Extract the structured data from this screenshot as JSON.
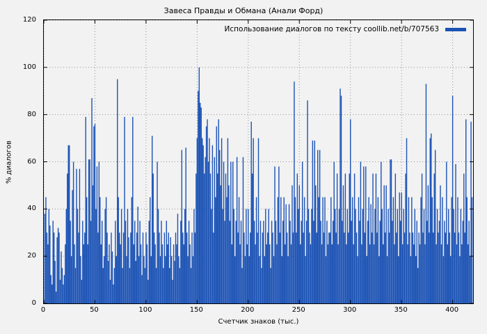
{
  "figure": {
    "title": "Завеса Правды и Обмана (Анали Форд)"
  },
  "legend": {
    "label": "Использование диалогов по тексту coollib.net/b/707563"
  },
  "axes": {
    "ylabel": "% диалогов",
    "xlabel": "Счетчик знаков (тыс.)"
  },
  "colors": {
    "bar": "#1b52b5",
    "grid": "#909090",
    "axis": "#000000",
    "background": "#f2f2f2"
  },
  "chart_data": {
    "type": "bar",
    "title": "Завеса Правды и Обмана (Анали Форд)",
    "series_label": "Использование диалогов по тексту coollib.net/b/707563",
    "xlabel": "Счетчик знаков (тыс.)",
    "ylabel": "% диалогов",
    "xlim": [
      0,
      420
    ],
    "ylim": [
      0,
      120
    ],
    "xticks": [
      0,
      50,
      100,
      150,
      200,
      250,
      300,
      350,
      400
    ],
    "yticks": [
      0,
      20,
      40,
      60,
      80,
      100,
      120
    ],
    "grid": true,
    "legend_position": "top-right",
    "x_start": 0,
    "x_step": 1,
    "values": [
      0,
      38,
      45,
      30,
      25,
      40,
      33,
      12,
      8,
      35,
      30,
      18,
      5,
      28,
      32,
      30,
      10,
      22,
      15,
      8,
      12,
      25,
      40,
      55,
      67,
      67,
      35,
      20,
      48,
      60,
      25,
      15,
      57,
      40,
      30,
      57,
      20,
      10,
      35,
      25,
      30,
      79,
      45,
      25,
      61,
      61,
      35,
      87,
      50,
      75,
      76,
      40,
      58,
      30,
      60,
      45,
      25,
      35,
      15,
      20,
      40,
      45,
      30,
      18,
      25,
      10,
      30,
      22,
      8,
      15,
      35,
      20,
      95,
      45,
      30,
      25,
      40,
      15,
      30,
      79,
      35,
      20,
      40,
      28,
      15,
      30,
      45,
      79,
      25,
      35,
      18,
      30,
      41,
      20,
      35,
      25,
      12,
      30,
      20,
      15,
      30,
      25,
      10,
      35,
      45,
      20,
      71,
      55,
      30,
      25,
      15,
      60,
      40,
      30,
      20,
      35,
      25,
      15,
      30,
      20,
      35,
      25,
      30,
      15,
      28,
      20,
      10,
      25,
      18,
      30,
      25,
      38,
      20,
      15,
      35,
      65,
      30,
      25,
      40,
      66,
      30,
      20,
      35,
      25,
      15,
      30,
      20,
      40,
      30,
      55,
      70,
      90,
      100,
      85,
      83,
      70,
      67,
      55,
      62,
      75,
      78,
      60,
      70,
      55,
      40,
      67,
      30,
      62,
      45,
      75,
      55,
      78,
      65,
      50,
      70,
      40,
      60,
      35,
      55,
      45,
      70,
      50,
      35,
      60,
      25,
      60,
      40,
      20,
      35,
      62,
      30,
      45,
      25,
      35,
      15,
      62,
      30,
      20,
      40,
      25,
      40,
      20,
      30,
      77,
      55,
      70,
      35,
      25,
      45,
      30,
      70,
      20,
      35,
      15,
      30,
      35,
      20,
      40,
      25,
      30,
      40,
      25,
      15,
      35,
      30,
      20,
      58,
      35,
      25,
      45,
      58,
      30,
      45,
      20,
      35,
      45,
      25,
      42,
      30,
      20,
      42,
      35,
      25,
      50,
      30,
      94,
      45,
      30,
      55,
      40,
      50,
      25,
      35,
      60,
      30,
      45,
      20,
      35,
      86,
      40,
      30,
      25,
      40,
      69,
      35,
      69,
      50,
      30,
      65,
      45,
      65,
      35,
      25,
      45,
      30,
      45,
      20,
      35,
      25,
      30,
      30,
      45,
      25,
      35,
      60,
      40,
      30,
      55,
      25,
      40,
      91,
      88,
      35,
      50,
      30,
      55,
      25,
      40,
      30,
      55,
      78,
      35,
      45,
      25,
      55,
      40,
      30,
      20,
      45,
      35,
      60,
      25,
      40,
      58,
      30,
      58,
      20,
      35,
      45,
      25,
      42,
      30,
      55,
      25,
      40,
      55,
      30,
      45,
      20,
      35,
      60,
      40,
      25,
      50,
      30,
      50,
      20,
      40,
      30,
      61,
      61,
      35,
      45,
      25,
      55,
      30,
      40,
      20,
      47,
      35,
      47,
      25,
      40,
      30,
      55,
      70,
      25,
      45,
      30,
      20,
      45,
      30,
      25,
      40,
      20,
      35,
      15,
      30,
      25,
      45,
      55,
      30,
      40,
      25,
      93,
      35,
      50,
      30,
      70,
      72,
      45,
      30,
      55,
      65,
      25,
      40,
      30,
      35,
      50,
      25,
      45,
      20,
      35,
      30,
      60,
      25,
      40,
      30,
      20,
      45,
      88,
      40,
      30,
      59,
      25,
      45,
      30,
      20,
      40,
      25,
      35,
      55,
      30,
      78,
      45,
      25,
      35,
      20,
      77,
      45
    ]
  }
}
